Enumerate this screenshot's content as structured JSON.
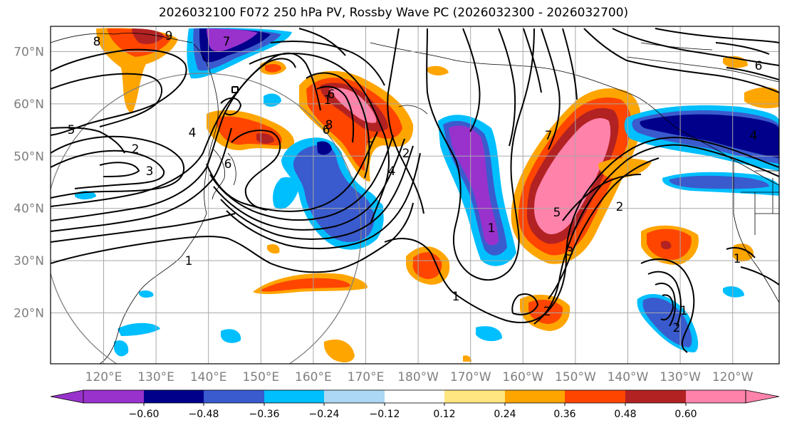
{
  "title": "2026032100 F072 250 hPa PV, Rossby Wave PC (2026032300 - 2026032700)",
  "map": {
    "lat_ticks": [
      "70°N",
      "60°N",
      "50°N",
      "40°N",
      "30°N",
      "20°N"
    ],
    "lon_ticks": [
      "120°E",
      "130°E",
      "140°E",
      "150°E",
      "160°E",
      "170°E",
      "180°W",
      "170°W",
      "160°W",
      "150°W",
      "140°W",
      "130°W",
      "120°W"
    ],
    "contour_labels": [
      "8",
      "9",
      "7",
      "6",
      "5",
      "4",
      "3",
      "2",
      "1",
      "1",
      "2",
      "4",
      "6",
      "7",
      "6",
      "8",
      "7",
      "5",
      "3",
      "2",
      "1",
      "2",
      "1",
      "6",
      "4",
      "1",
      "2",
      "1"
    ]
  },
  "colorbar": {
    "ticks": [
      "−0.60",
      "−0.48",
      "−0.36",
      "−0.24",
      "−0.12",
      "0.12",
      "0.24",
      "0.36",
      "0.48",
      "0.60"
    ],
    "colors": [
      "#9932cc",
      "#00008b",
      "#3a5bcd",
      "#00bfff",
      "#add8f5",
      "#ffffff",
      "#ffe680",
      "#ffa500",
      "#ff4500",
      "#b22222",
      "#ff82ab"
    ]
  }
}
